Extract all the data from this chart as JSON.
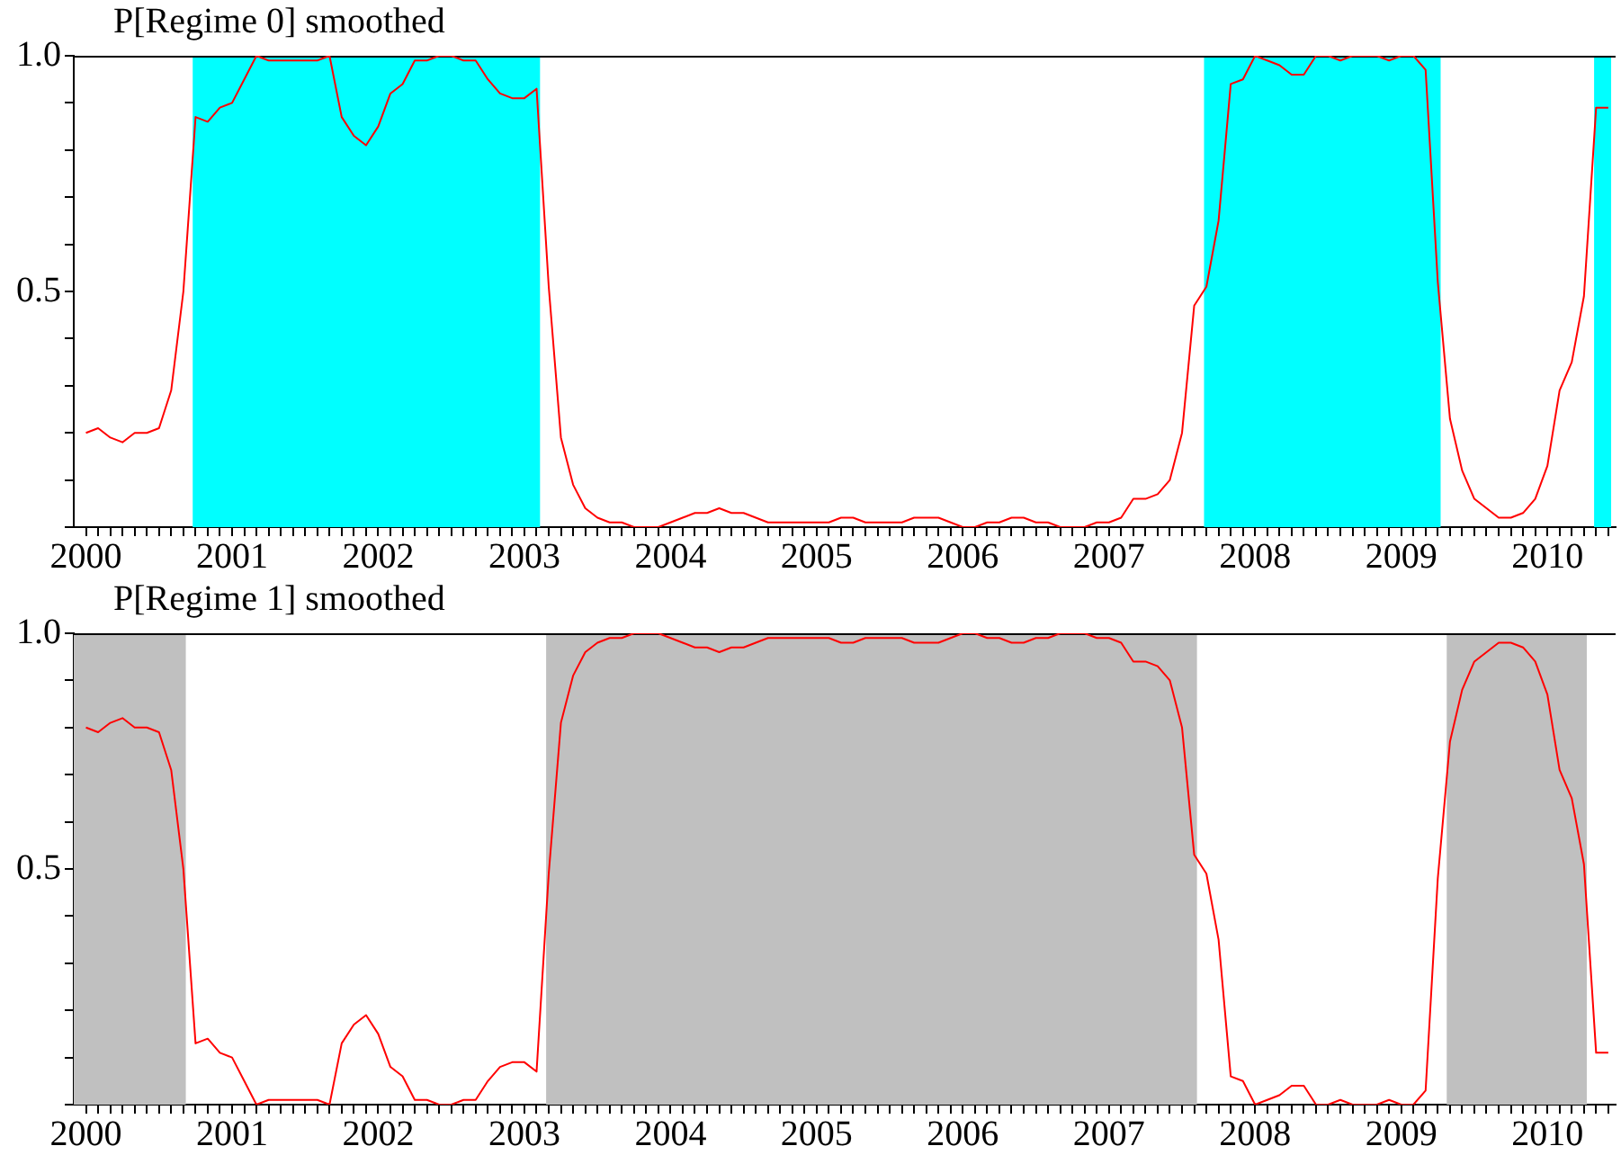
{
  "chart_data": [
    {
      "type": "line",
      "title": "P[Regime 0] smoothed",
      "color": "#ff0000",
      "grid": false,
      "x": [
        "2000-01",
        "2000-02",
        "2000-03",
        "2000-04",
        "2000-05",
        "2000-06",
        "2000-07",
        "2000-08",
        "2000-09",
        "2000-10",
        "2000-11",
        "2000-12",
        "2001-01",
        "2001-02",
        "2001-03",
        "2001-04",
        "2001-05",
        "2001-06",
        "2001-07",
        "2001-08",
        "2001-09",
        "2001-10",
        "2001-11",
        "2001-12",
        "2002-01",
        "2002-02",
        "2002-03",
        "2002-04",
        "2002-05",
        "2002-06",
        "2002-07",
        "2002-08",
        "2002-09",
        "2002-10",
        "2002-11",
        "2002-12",
        "2003-01",
        "2003-02",
        "2003-03",
        "2003-04",
        "2003-05",
        "2003-06",
        "2003-07",
        "2003-08",
        "2003-09",
        "2003-10",
        "2003-11",
        "2003-12",
        "2004-01",
        "2004-02",
        "2004-03",
        "2004-04",
        "2004-05",
        "2004-06",
        "2004-07",
        "2004-08",
        "2004-09",
        "2004-10",
        "2004-11",
        "2004-12",
        "2005-01",
        "2005-02",
        "2005-03",
        "2005-04",
        "2005-05",
        "2005-06",
        "2005-07",
        "2005-08",
        "2005-09",
        "2005-10",
        "2005-11",
        "2005-12",
        "2006-01",
        "2006-02",
        "2006-03",
        "2006-04",
        "2006-05",
        "2006-06",
        "2006-07",
        "2006-08",
        "2006-09",
        "2006-10",
        "2006-11",
        "2006-12",
        "2007-01",
        "2007-02",
        "2007-03",
        "2007-04",
        "2007-05",
        "2007-06",
        "2007-07",
        "2007-08",
        "2007-09",
        "2007-10",
        "2007-11",
        "2007-12",
        "2008-01",
        "2008-02",
        "2008-03",
        "2008-04",
        "2008-05",
        "2008-06",
        "2008-07",
        "2008-08",
        "2008-09",
        "2008-10",
        "2008-11",
        "2008-12",
        "2009-01",
        "2009-02",
        "2009-03",
        "2009-04",
        "2009-05",
        "2009-06",
        "2009-07",
        "2009-08",
        "2009-09",
        "2009-10",
        "2009-11",
        "2009-12",
        "2010-01",
        "2010-02",
        "2010-03",
        "2010-04",
        "2010-05",
        "2010-06"
      ],
      "values": [
        0.2,
        0.21,
        0.19,
        0.18,
        0.2,
        0.2,
        0.21,
        0.29,
        0.5,
        0.87,
        0.86,
        0.89,
        0.9,
        0.95,
        1.0,
        0.99,
        0.99,
        0.99,
        0.99,
        0.99,
        1.0,
        0.87,
        0.83,
        0.81,
        0.85,
        0.92,
        0.94,
        0.99,
        0.99,
        1.0,
        1.0,
        0.99,
        0.99,
        0.95,
        0.92,
        0.91,
        0.91,
        0.93,
        0.51,
        0.19,
        0.09,
        0.04,
        0.02,
        0.01,
        0.01,
        0,
        0,
        0,
        0.01,
        0.02,
        0.03,
        0.03,
        0.04,
        0.03,
        0.03,
        0.02,
        0.01,
        0.01,
        0.01,
        0.01,
        0.01,
        0.01,
        0.02,
        0.02,
        0.01,
        0.01,
        0.01,
        0.01,
        0.02,
        0.02,
        0.02,
        0.01,
        0,
        0,
        0.01,
        0.01,
        0.02,
        0.02,
        0.01,
        0.01,
        0,
        0,
        0,
        0.01,
        0.01,
        0.02,
        0.06,
        0.06,
        0.07,
        0.1,
        0.2,
        0.47,
        0.51,
        0.65,
        0.94,
        0.95,
        1.0,
        0.99,
        0.98,
        0.96,
        0.96,
        1.0,
        1.0,
        0.99,
        1.0,
        1.0,
        1.0,
        0.99,
        1.0,
        1.0,
        0.97,
        0.52,
        0.23,
        0.12,
        0.06,
        0.04,
        0.02,
        0.02,
        0.03,
        0.06,
        0.13,
        0.29,
        0.35,
        0.49,
        0.89,
        0.89
      ],
      "xlim": [
        "1999-12",
        "2010-06-19"
      ],
      "xticks": [
        {
          "value": "2000-01",
          "label": "2000"
        },
        {
          "value": "2000-02",
          "label": null
        },
        {
          "value": "2000-03",
          "label": null
        },
        {
          "value": "2000-04",
          "label": null
        },
        {
          "value": "2000-05",
          "label": null
        },
        {
          "value": "2000-06",
          "label": null
        },
        {
          "value": "2000-07",
          "label": null
        },
        {
          "value": "2000-08",
          "label": null
        },
        {
          "value": "2000-09",
          "label": null
        },
        {
          "value": "2000-10",
          "label": null
        },
        {
          "value": "2000-11",
          "label": null
        },
        {
          "value": "2000-12",
          "label": null
        },
        {
          "value": "2001-01",
          "label": "2001"
        },
        {
          "value": "2001-02",
          "label": null
        },
        {
          "value": "2001-03",
          "label": null
        },
        {
          "value": "2001-04",
          "label": null
        },
        {
          "value": "2001-05",
          "label": null
        },
        {
          "value": "2001-06",
          "label": null
        },
        {
          "value": "2001-07",
          "label": null
        },
        {
          "value": "2001-08",
          "label": null
        },
        {
          "value": "2001-09",
          "label": null
        },
        {
          "value": "2001-10",
          "label": null
        },
        {
          "value": "2001-11",
          "label": null
        },
        {
          "value": "2001-12",
          "label": null
        },
        {
          "value": "2002-01",
          "label": "2002"
        },
        {
          "value": "2002-02",
          "label": null
        },
        {
          "value": "2002-03",
          "label": null
        },
        {
          "value": "2002-04",
          "label": null
        },
        {
          "value": "2002-05",
          "label": null
        },
        {
          "value": "2002-06",
          "label": null
        },
        {
          "value": "2002-07",
          "label": null
        },
        {
          "value": "2002-08",
          "label": null
        },
        {
          "value": "2002-09",
          "label": null
        },
        {
          "value": "2002-10",
          "label": null
        },
        {
          "value": "2002-11",
          "label": null
        },
        {
          "value": "2002-12",
          "label": null
        },
        {
          "value": "2003-01",
          "label": "2003"
        },
        {
          "value": "2003-02",
          "label": null
        },
        {
          "value": "2003-03",
          "label": null
        },
        {
          "value": "2003-04",
          "label": null
        },
        {
          "value": "2003-05",
          "label": null
        },
        {
          "value": "2003-06",
          "label": null
        },
        {
          "value": "2003-07",
          "label": null
        },
        {
          "value": "2003-08",
          "label": null
        },
        {
          "value": "2003-09",
          "label": null
        },
        {
          "value": "2003-10",
          "label": null
        },
        {
          "value": "2003-11",
          "label": null
        },
        {
          "value": "2003-12",
          "label": null
        },
        {
          "value": "2004-01",
          "label": "2004"
        },
        {
          "value": "2004-02",
          "label": null
        },
        {
          "value": "2004-03",
          "label": null
        },
        {
          "value": "2004-04",
          "label": null
        },
        {
          "value": "2004-05",
          "label": null
        },
        {
          "value": "2004-06",
          "label": null
        },
        {
          "value": "2004-07",
          "label": null
        },
        {
          "value": "2004-08",
          "label": null
        },
        {
          "value": "2004-09",
          "label": null
        },
        {
          "value": "2004-10",
          "label": null
        },
        {
          "value": "2004-11",
          "label": null
        },
        {
          "value": "2004-12",
          "label": null
        },
        {
          "value": "2005-01",
          "label": "2005"
        },
        {
          "value": "2005-02",
          "label": null
        },
        {
          "value": "2005-03",
          "label": null
        },
        {
          "value": "2005-04",
          "label": null
        },
        {
          "value": "2005-05",
          "label": null
        },
        {
          "value": "2005-06",
          "label": null
        },
        {
          "value": "2005-07",
          "label": null
        },
        {
          "value": "2005-08",
          "label": null
        },
        {
          "value": "2005-09",
          "label": null
        },
        {
          "value": "2005-10",
          "label": null
        },
        {
          "value": "2005-11",
          "label": null
        },
        {
          "value": "2005-12",
          "label": null
        },
        {
          "value": "2006-01",
          "label": "2006"
        },
        {
          "value": "2006-02",
          "label": null
        },
        {
          "value": "2006-03",
          "label": null
        },
        {
          "value": "2006-04",
          "label": null
        },
        {
          "value": "2006-05",
          "label": null
        },
        {
          "value": "2006-06",
          "label": null
        },
        {
          "value": "2006-07",
          "label": null
        },
        {
          "value": "2006-08",
          "label": null
        },
        {
          "value": "2006-09",
          "label": null
        },
        {
          "value": "2006-10",
          "label": null
        },
        {
          "value": "2006-11",
          "label": null
        },
        {
          "value": "2006-12",
          "label": null
        },
        {
          "value": "2007-01",
          "label": "2007"
        },
        {
          "value": "2007-02",
          "label": null
        },
        {
          "value": "2007-03",
          "label": null
        },
        {
          "value": "2007-04",
          "label": null
        },
        {
          "value": "2007-05",
          "label": null
        },
        {
          "value": "2007-06",
          "label": null
        },
        {
          "value": "2007-07",
          "label": null
        },
        {
          "value": "2007-08",
          "label": null
        },
        {
          "value": "2007-09",
          "label": null
        },
        {
          "value": "2007-10",
          "label": null
        },
        {
          "value": "2007-11",
          "label": null
        },
        {
          "value": "2007-12",
          "label": null
        },
        {
          "value": "2008-01",
          "label": "2008"
        },
        {
          "value": "2008-02",
          "label": null
        },
        {
          "value": "2008-03",
          "label": null
        },
        {
          "value": "2008-04",
          "label": null
        },
        {
          "value": "2008-05",
          "label": null
        },
        {
          "value": "2008-06",
          "label": null
        },
        {
          "value": "2008-07",
          "label": null
        },
        {
          "value": "2008-08",
          "label": null
        },
        {
          "value": "2008-09",
          "label": null
        },
        {
          "value": "2008-10",
          "label": null
        },
        {
          "value": "2008-11",
          "label": null
        },
        {
          "value": "2008-12",
          "label": null
        },
        {
          "value": "2009-01",
          "label": "2009"
        },
        {
          "value": "2009-02",
          "label": null
        },
        {
          "value": "2009-03",
          "label": null
        },
        {
          "value": "2009-04",
          "label": null
        },
        {
          "value": "2009-05",
          "label": null
        },
        {
          "value": "2009-06",
          "label": null
        },
        {
          "value": "2009-07",
          "label": null
        },
        {
          "value": "2009-08",
          "label": null
        },
        {
          "value": "2009-09",
          "label": null
        },
        {
          "value": "2009-10",
          "label": null
        },
        {
          "value": "2009-11",
          "label": null
        },
        {
          "value": "2009-12",
          "label": null
        },
        {
          "value": "2010-01",
          "label": "2010"
        },
        {
          "value": "2010-02",
          "label": null
        },
        {
          "value": "2010-03",
          "label": null
        },
        {
          "value": "2010-04",
          "label": null
        },
        {
          "value": "2010-05",
          "label": null
        },
        {
          "value": "2010-06",
          "label": null
        }
      ],
      "ylim": [
        0,
        1
      ],
      "yticks": [
        {
          "value": 0,
          "label": null
        },
        {
          "value": 0.1,
          "label": null
        },
        {
          "value": 0.2,
          "label": null
        },
        {
          "value": 0.3,
          "label": null
        },
        {
          "value": 0.4,
          "label": null
        },
        {
          "value": 0.5,
          "label": "0.5"
        },
        {
          "value": 0.6,
          "label": null
        },
        {
          "value": 0.7,
          "label": null
        },
        {
          "value": 0.8,
          "label": null
        },
        {
          "value": 0.9,
          "label": null
        },
        {
          "value": 1,
          "label": "1.0"
        }
      ],
      "bands": [
        {
          "axis": "x",
          "from": "2000-09-24",
          "to": "2003-02-09",
          "color": "#00ffff"
        },
        {
          "axis": "x",
          "from": "2007-08-26",
          "to": "2009-04-08",
          "color": "#00ffff"
        },
        {
          "axis": "x",
          "from": "2010-04-26",
          "to": "2010-06-08",
          "color": "#00ffff"
        }
      ]
    },
    {
      "type": "line",
      "title": "P[Regime 1] smoothed",
      "color": "#ff0000",
      "grid": false,
      "x": [
        "2000-01",
        "2000-02",
        "2000-03",
        "2000-04",
        "2000-05",
        "2000-06",
        "2000-07",
        "2000-08",
        "2000-09",
        "2000-10",
        "2000-11",
        "2000-12",
        "2001-01",
        "2001-02",
        "2001-03",
        "2001-04",
        "2001-05",
        "2001-06",
        "2001-07",
        "2001-08",
        "2001-09",
        "2001-10",
        "2001-11",
        "2001-12",
        "2002-01",
        "2002-02",
        "2002-03",
        "2002-04",
        "2002-05",
        "2002-06",
        "2002-07",
        "2002-08",
        "2002-09",
        "2002-10",
        "2002-11",
        "2002-12",
        "2003-01",
        "2003-02",
        "2003-03",
        "2003-04",
        "2003-05",
        "2003-06",
        "2003-07",
        "2003-08",
        "2003-09",
        "2003-10",
        "2003-11",
        "2003-12",
        "2004-01",
        "2004-02",
        "2004-03",
        "2004-04",
        "2004-05",
        "2004-06",
        "2004-07",
        "2004-08",
        "2004-09",
        "2004-10",
        "2004-11",
        "2004-12",
        "2005-01",
        "2005-02",
        "2005-03",
        "2005-04",
        "2005-05",
        "2005-06",
        "2005-07",
        "2005-08",
        "2005-09",
        "2005-10",
        "2005-11",
        "2005-12",
        "2006-01",
        "2006-02",
        "2006-03",
        "2006-04",
        "2006-05",
        "2006-06",
        "2006-07",
        "2006-08",
        "2006-09",
        "2006-10",
        "2006-11",
        "2006-12",
        "2007-01",
        "2007-02",
        "2007-03",
        "2007-04",
        "2007-05",
        "2007-06",
        "2007-07",
        "2007-08",
        "2007-09",
        "2007-10",
        "2007-11",
        "2007-12",
        "2008-01",
        "2008-02",
        "2008-03",
        "2008-04",
        "2008-05",
        "2008-06",
        "2008-07",
        "2008-08",
        "2008-09",
        "2008-10",
        "2008-11",
        "2008-12",
        "2009-01",
        "2009-02",
        "2009-03",
        "2009-04",
        "2009-05",
        "2009-06",
        "2009-07",
        "2009-08",
        "2009-09",
        "2009-10",
        "2009-11",
        "2009-12",
        "2010-01",
        "2010-02",
        "2010-03",
        "2010-04",
        "2010-05",
        "2010-06"
      ],
      "values": [
        0.8,
        0.79,
        0.81,
        0.82,
        0.8,
        0.8,
        0.79,
        0.71,
        0.5,
        0.13,
        0.14,
        0.11,
        0.1,
        0.05,
        0,
        0.01,
        0.01,
        0.01,
        0.01,
        0.01,
        0,
        0.13,
        0.17,
        0.19,
        0.15,
        0.08,
        0.06,
        0.01,
        0.01,
        0,
        0,
        0.01,
        0.01,
        0.05,
        0.08,
        0.09,
        0.09,
        0.07,
        0.49,
        0.81,
        0.91,
        0.96,
        0.98,
        0.99,
        0.99,
        1,
        1,
        1,
        0.99,
        0.98,
        0.97,
        0.97,
        0.96,
        0.97,
        0.97,
        0.98,
        0.99,
        0.99,
        0.99,
        0.99,
        0.99,
        0.99,
        0.98,
        0.98,
        0.99,
        0.99,
        0.99,
        0.99,
        0.98,
        0.98,
        0.98,
        0.99,
        1,
        1,
        0.99,
        0.99,
        0.98,
        0.98,
        0.99,
        0.99,
        1,
        1,
        1,
        0.99,
        0.99,
        0.98,
        0.94,
        0.94,
        0.93,
        0.9,
        0.8,
        0.53,
        0.49,
        0.35,
        0.06,
        0.05,
        0,
        0.01,
        0.02,
        0.04,
        0.04,
        0,
        0,
        0.01,
        0,
        0,
        0,
        0.01,
        0,
        0,
        0.03,
        0.48,
        0.77,
        0.88,
        0.94,
        0.96,
        0.98,
        0.98,
        0.97,
        0.94,
        0.87,
        0.71,
        0.65,
        0.51,
        0.11,
        0.11
      ],
      "xlim": [
        "1999-12",
        "2010-06-19"
      ],
      "xticks": [
        {
          "value": "2000-01",
          "label": "2000"
        },
        {
          "value": "2000-02",
          "label": null
        },
        {
          "value": "2000-03",
          "label": null
        },
        {
          "value": "2000-04",
          "label": null
        },
        {
          "value": "2000-05",
          "label": null
        },
        {
          "value": "2000-06",
          "label": null
        },
        {
          "value": "2000-07",
          "label": null
        },
        {
          "value": "2000-08",
          "label": null
        },
        {
          "value": "2000-09",
          "label": null
        },
        {
          "value": "2000-10",
          "label": null
        },
        {
          "value": "2000-11",
          "label": null
        },
        {
          "value": "2000-12",
          "label": null
        },
        {
          "value": "2001-01",
          "label": "2001"
        },
        {
          "value": "2001-02",
          "label": null
        },
        {
          "value": "2001-03",
          "label": null
        },
        {
          "value": "2001-04",
          "label": null
        },
        {
          "value": "2001-05",
          "label": null
        },
        {
          "value": "2001-06",
          "label": null
        },
        {
          "value": "2001-07",
          "label": null
        },
        {
          "value": "2001-08",
          "label": null
        },
        {
          "value": "2001-09",
          "label": null
        },
        {
          "value": "2001-10",
          "label": null
        },
        {
          "value": "2001-11",
          "label": null
        },
        {
          "value": "2001-12",
          "label": null
        },
        {
          "value": "2002-01",
          "label": "2002"
        },
        {
          "value": "2002-02",
          "label": null
        },
        {
          "value": "2002-03",
          "label": null
        },
        {
          "value": "2002-04",
          "label": null
        },
        {
          "value": "2002-05",
          "label": null
        },
        {
          "value": "2002-06",
          "label": null
        },
        {
          "value": "2002-07",
          "label": null
        },
        {
          "value": "2002-08",
          "label": null
        },
        {
          "value": "2002-09",
          "label": null
        },
        {
          "value": "2002-10",
          "label": null
        },
        {
          "value": "2002-11",
          "label": null
        },
        {
          "value": "2002-12",
          "label": null
        },
        {
          "value": "2003-01",
          "label": "2003"
        },
        {
          "value": "2003-02",
          "label": null
        },
        {
          "value": "2003-03",
          "label": null
        },
        {
          "value": "2003-04",
          "label": null
        },
        {
          "value": "2003-05",
          "label": null
        },
        {
          "value": "2003-06",
          "label": null
        },
        {
          "value": "2003-07",
          "label": null
        },
        {
          "value": "2003-08",
          "label": null
        },
        {
          "value": "2003-09",
          "label": null
        },
        {
          "value": "2003-10",
          "label": null
        },
        {
          "value": "2003-11",
          "label": null
        },
        {
          "value": "2003-12",
          "label": null
        },
        {
          "value": "2004-01",
          "label": "2004"
        },
        {
          "value": "2004-02",
          "label": null
        },
        {
          "value": "2004-03",
          "label": null
        },
        {
          "value": "2004-04",
          "label": null
        },
        {
          "value": "2004-05",
          "label": null
        },
        {
          "value": "2004-06",
          "label": null
        },
        {
          "value": "2004-07",
          "label": null
        },
        {
          "value": "2004-08",
          "label": null
        },
        {
          "value": "2004-09",
          "label": null
        },
        {
          "value": "2004-10",
          "label": null
        },
        {
          "value": "2004-11",
          "label": null
        },
        {
          "value": "2004-12",
          "label": null
        },
        {
          "value": "2005-01",
          "label": "2005"
        },
        {
          "value": "2005-02",
          "label": null
        },
        {
          "value": "2005-03",
          "label": null
        },
        {
          "value": "2005-04",
          "label": null
        },
        {
          "value": "2005-05",
          "label": null
        },
        {
          "value": "2005-06",
          "label": null
        },
        {
          "value": "2005-07",
          "label": null
        },
        {
          "value": "2005-08",
          "label": null
        },
        {
          "value": "2005-09",
          "label": null
        },
        {
          "value": "2005-10",
          "label": null
        },
        {
          "value": "2005-11",
          "label": null
        },
        {
          "value": "2005-12",
          "label": null
        },
        {
          "value": "2006-01",
          "label": "2006"
        },
        {
          "value": "2006-02",
          "label": null
        },
        {
          "value": "2006-03",
          "label": null
        },
        {
          "value": "2006-04",
          "label": null
        },
        {
          "value": "2006-05",
          "label": null
        },
        {
          "value": "2006-06",
          "label": null
        },
        {
          "value": "2006-07",
          "label": null
        },
        {
          "value": "2006-08",
          "label": null
        },
        {
          "value": "2006-09",
          "label": null
        },
        {
          "value": "2006-10",
          "label": null
        },
        {
          "value": "2006-11",
          "label": null
        },
        {
          "value": "2006-12",
          "label": null
        },
        {
          "value": "2007-01",
          "label": "2007"
        },
        {
          "value": "2007-02",
          "label": null
        },
        {
          "value": "2007-03",
          "label": null
        },
        {
          "value": "2007-04",
          "label": null
        },
        {
          "value": "2007-05",
          "label": null
        },
        {
          "value": "2007-06",
          "label": null
        },
        {
          "value": "2007-07",
          "label": null
        },
        {
          "value": "2007-08",
          "label": null
        },
        {
          "value": "2007-09",
          "label": null
        },
        {
          "value": "2007-10",
          "label": null
        },
        {
          "value": "2007-11",
          "label": null
        },
        {
          "value": "2007-12",
          "label": null
        },
        {
          "value": "2008-01",
          "label": "2008"
        },
        {
          "value": "2008-02",
          "label": null
        },
        {
          "value": "2008-03",
          "label": null
        },
        {
          "value": "2008-04",
          "label": null
        },
        {
          "value": "2008-05",
          "label": null
        },
        {
          "value": "2008-06",
          "label": null
        },
        {
          "value": "2008-07",
          "label": null
        },
        {
          "value": "2008-08",
          "label": null
        },
        {
          "value": "2008-09",
          "label": null
        },
        {
          "value": "2008-10",
          "label": null
        },
        {
          "value": "2008-11",
          "label": null
        },
        {
          "value": "2008-12",
          "label": null
        },
        {
          "value": "2009-01",
          "label": "2009"
        },
        {
          "value": "2009-02",
          "label": null
        },
        {
          "value": "2009-03",
          "label": null
        },
        {
          "value": "2009-04",
          "label": null
        },
        {
          "value": "2009-05",
          "label": null
        },
        {
          "value": "2009-06",
          "label": null
        },
        {
          "value": "2009-07",
          "label": null
        },
        {
          "value": "2009-08",
          "label": null
        },
        {
          "value": "2009-09",
          "label": null
        },
        {
          "value": "2009-10",
          "label": null
        },
        {
          "value": "2009-11",
          "label": null
        },
        {
          "value": "2009-12",
          "label": null
        },
        {
          "value": "2010-01",
          "label": "2010"
        },
        {
          "value": "2010-02",
          "label": null
        },
        {
          "value": "2010-03",
          "label": null
        },
        {
          "value": "2010-04",
          "label": null
        },
        {
          "value": "2010-05",
          "label": null
        },
        {
          "value": "2010-06",
          "label": null
        }
      ],
      "ylim": [
        0,
        1
      ],
      "yticks": [
        {
          "value": 0,
          "label": null
        },
        {
          "value": 0.1,
          "label": null
        },
        {
          "value": 0.2,
          "label": null
        },
        {
          "value": 0.3,
          "label": null
        },
        {
          "value": 0.4,
          "label": null
        },
        {
          "value": 0.5,
          "label": "0.5"
        },
        {
          "value": 0.6,
          "label": null
        },
        {
          "value": 0.7,
          "label": null
        },
        {
          "value": 0.8,
          "label": null
        },
        {
          "value": 0.9,
          "label": null
        },
        {
          "value": 1,
          "label": "1.0"
        }
      ],
      "bands": [
        {
          "axis": "x",
          "from": "1999-12",
          "to": "2000-09-07",
          "color": "#c0c0c0"
        },
        {
          "axis": "x",
          "from": "2003-02-23",
          "to": "2007-08-08",
          "color": "#c0c0c0"
        },
        {
          "axis": "x",
          "from": "2009-04-23",
          "to": "2010-04-08",
          "color": "#c0c0c0"
        }
      ]
    }
  ]
}
